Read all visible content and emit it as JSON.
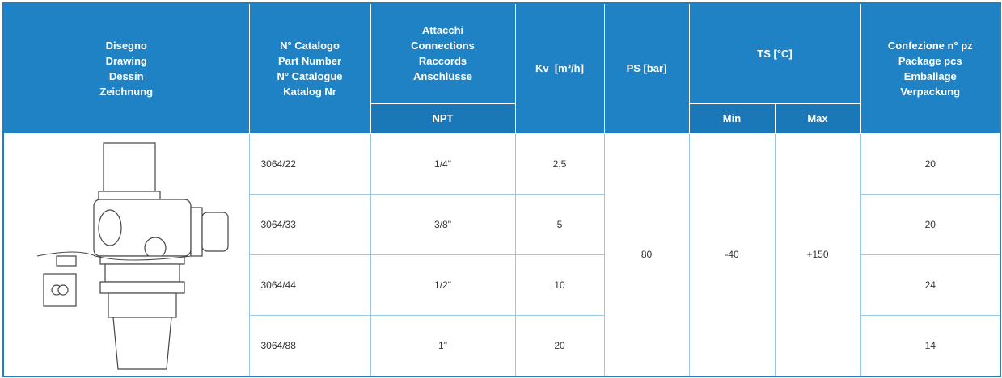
{
  "header": {
    "drawing": [
      "Disegno",
      "Drawing",
      "Dessin",
      "Zeichnung"
    ],
    "part_number": [
      "N° Catalogo",
      "Part Number",
      "N° Catalogue",
      "Katalog Nr"
    ],
    "connections": [
      "Attacchi",
      "Connections",
      "Raccords",
      "Anschlüsse"
    ],
    "connections_sub": "NPT",
    "kv": "Kv  [m³/h]",
    "ps": "PS [bar]",
    "ts": "TS [°C]",
    "ts_min": "Min",
    "ts_max": "Max",
    "package": [
      "Confezione n° pz",
      "Package pcs",
      "Emballage",
      "Verpackung"
    ]
  },
  "rows": [
    [
      "3064/22",
      "1/4\"",
      "2,5",
      "20"
    ],
    [
      "3064/33",
      "3/8\"",
      "5",
      "20"
    ],
    [
      "3064/44",
      "1/2\"",
      "10",
      "24"
    ],
    [
      "3064/88",
      "1\"",
      "20",
      "14"
    ]
  ],
  "ps": "80",
  "ts_min": "-40",
  "ts_max": "+150"
}
